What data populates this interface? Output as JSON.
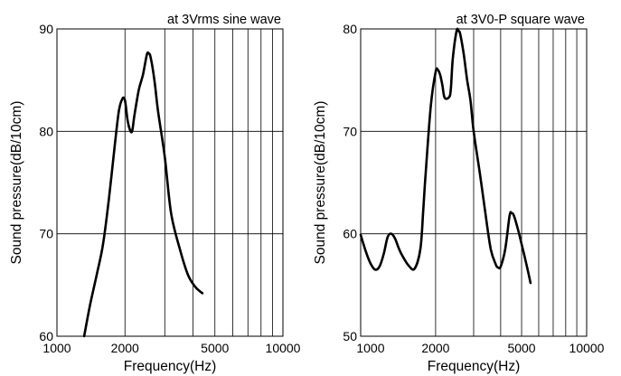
{
  "chart_data": [
    {
      "type": "line",
      "title": "at 3Vrms sine wave",
      "xlabel": "Frequency(Hz)",
      "ylabel": "Sound pressure(dB/10cm)",
      "xscale": "log",
      "xlim": [
        1000,
        10000
      ],
      "ylim": [
        60,
        90
      ],
      "xticks": [
        1000,
        2000,
        5000,
        10000
      ],
      "xtick_labels": [
        "1000",
        "2000",
        "5000",
        "10000"
      ],
      "yticks": [
        60,
        70,
        80,
        90
      ],
      "grid": true,
      "series": [
        {
          "x": [
            1320,
            1400,
            1500,
            1600,
            1700,
            1800,
            1880,
            1950,
            2000,
            2050,
            2100,
            2150,
            2200,
            2300,
            2400,
            2500,
            2550,
            2600,
            2700,
            2800,
            3000,
            3200,
            3500,
            3800,
            4100,
            4400
          ],
          "y": [
            60.0,
            63.0,
            66.0,
            69.0,
            73.5,
            78.5,
            82.0,
            83.2,
            83.0,
            81.2,
            80.2,
            80.0,
            81.5,
            84.0,
            85.5,
            87.5,
            87.6,
            87.2,
            85.0,
            82.0,
            77.5,
            72.0,
            68.5,
            66.0,
            64.8,
            64.2
          ]
        }
      ]
    },
    {
      "type": "line",
      "title": "at 3V0-P square wave",
      "xlabel": "Frequency(Hz)",
      "ylabel": "Sound pressure(dB/10cm)",
      "xscale": "log",
      "xlim": [
        900,
        10000
      ],
      "ylim": [
        50,
        80
      ],
      "xticks": [
        1000,
        2000,
        5000,
        10000
      ],
      "xtick_labels": [
        "1000",
        "2000",
        "5000",
        "10000"
      ],
      "yticks": [
        50,
        60,
        70,
        80
      ],
      "grid": true,
      "series": [
        {
          "x": [
            900,
            950,
            1000,
            1050,
            1100,
            1150,
            1200,
            1250,
            1300,
            1350,
            1400,
            1500,
            1600,
            1700,
            1750,
            1800,
            1900,
            2000,
            2050,
            2100,
            2150,
            2200,
            2300,
            2350,
            2400,
            2500,
            2550,
            2600,
            2700,
            2800,
            2900,
            3000,
            3200,
            3400,
            3600,
            3800,
            3900,
            4000,
            4200,
            4400,
            4500,
            4600,
            4800,
            5000,
            5200,
            5500
          ],
          "y": [
            59.9,
            58.3,
            57.1,
            56.5,
            56.8,
            58.0,
            59.7,
            60.0,
            59.5,
            58.6,
            57.9,
            56.9,
            56.6,
            58.5,
            62.0,
            66.0,
            72.5,
            75.8,
            76.0,
            75.5,
            74.5,
            73.3,
            73.3,
            74.0,
            77.0,
            79.8,
            79.8,
            79.5,
            77.5,
            75.0,
            73.0,
            70.0,
            66.0,
            62.0,
            58.5,
            57.0,
            56.7,
            56.8,
            58.5,
            61.8,
            62.0,
            61.8,
            60.5,
            59.0,
            57.5,
            55.2
          ]
        }
      ]
    }
  ]
}
